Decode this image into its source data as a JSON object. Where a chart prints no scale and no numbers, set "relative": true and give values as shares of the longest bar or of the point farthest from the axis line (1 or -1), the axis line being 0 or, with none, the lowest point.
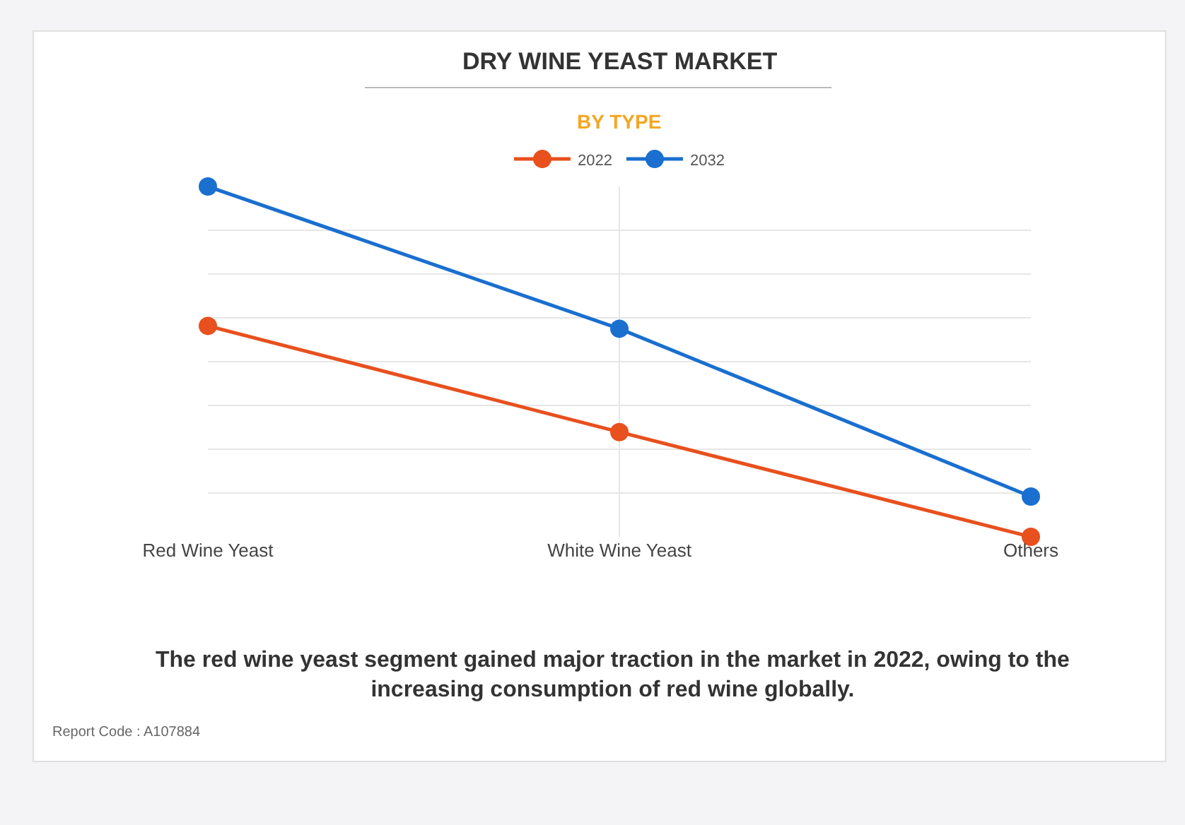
{
  "chart_data": {
    "type": "line",
    "title": "DRY WINE YEAST MARKET",
    "subtitle": "BY TYPE",
    "categories": [
      "Red Wine Yeast",
      "White Wine Yeast",
      "Others"
    ],
    "relative": true,
    "grid": true,
    "legend": "top",
    "marker": "circle",
    "line_style": "solid",
    "series": [
      {
        "name": "2022",
        "color": "#e8501e",
        "values": [
          0.602,
          0.299,
          0
        ]
      },
      {
        "name": "2032",
        "color": "#1a6fcf",
        "values": [
          1,
          0.594,
          0.115
        ]
      }
    ],
    "annotations": [
      "The red wine yeast segment gained major traction in the market in 2022, owing to the increasing consumption of red wine globally.",
      "Report Code : A107884"
    ]
  }
}
